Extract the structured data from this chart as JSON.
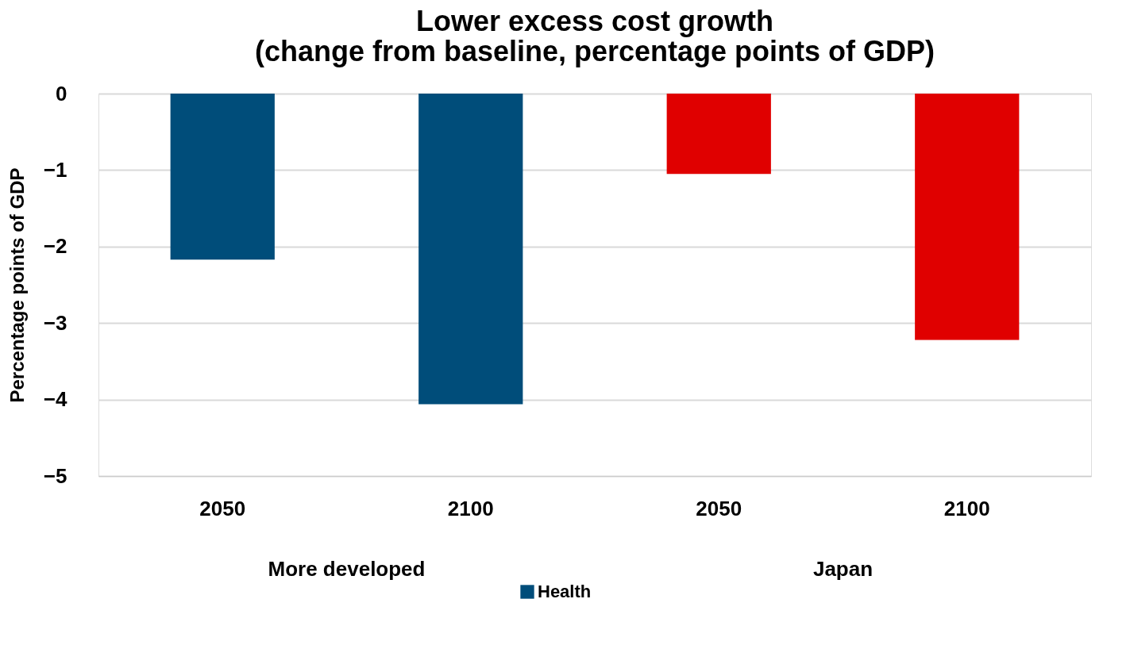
{
  "chart_data": {
    "type": "bar",
    "title": [
      "Lower excess cost growth",
      "(change from baseline, percentage points of GDP)"
    ],
    "ylabel": "Percentage points of GDP",
    "categories": [
      "2050",
      "2100",
      "2050",
      "2100"
    ],
    "series": [
      {
        "name": "Health",
        "color": "#004d7a",
        "colors": [
          "#004d7a",
          "#004d7a",
          "#e00000",
          "#e00000"
        ],
        "values": [
          -2.17,
          -4.06,
          -1.05,
          -3.22
        ]
      }
    ],
    "annotations": [
      "More developed",
      "Japan"
    ],
    "ylim": [
      -5,
      0
    ],
    "yticks": [
      0,
      -1,
      -2,
      -3,
      -4,
      -5
    ],
    "grid": "y",
    "legend": "bottom"
  }
}
